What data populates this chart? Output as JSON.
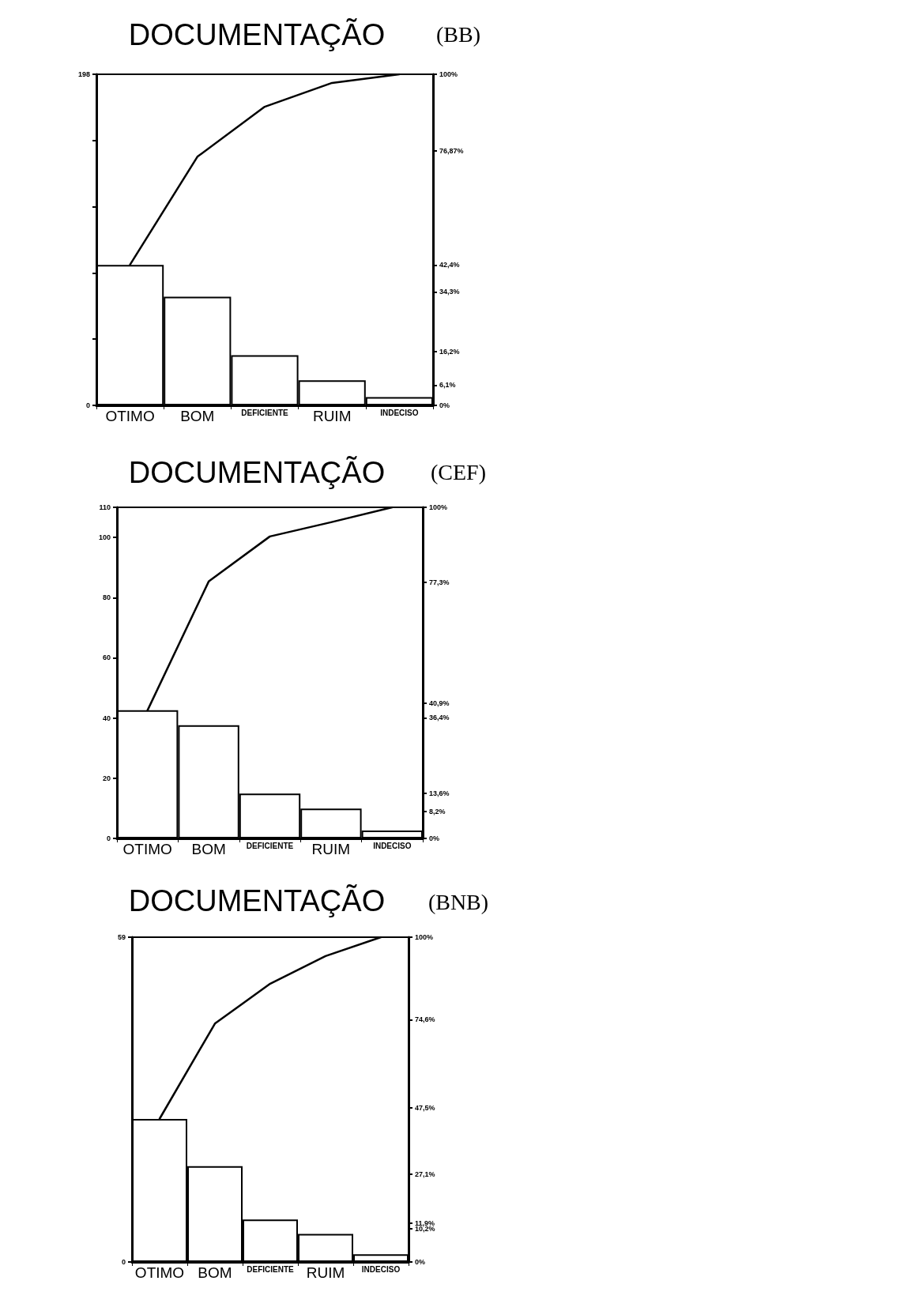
{
  "chart_data": [
    {
      "type": "bar",
      "title": "DOCUMENTAÇÃO",
      "subtitle": "(BB)",
      "categories": [
        "OTIMO",
        "BOM",
        "DEFICIENTE",
        "RUIM",
        "INDECISO"
      ],
      "series": [
        {
          "color": "#ffffff",
          "values": [
            84,
            65,
            30,
            15,
            5
          ]
        },
        {
          "type": "line",
          "axis": "y2",
          "color": "#000000",
          "values": [
            42.5,
            75.1,
            90.2,
            97.4,
            100
          ]
        }
      ],
      "ylim": [
        0,
        198
      ],
      "yticks": [
        0,
        {
          "value": 39.6,
          "label": null
        },
        {
          "value": 79.2,
          "label": null
        },
        {
          "value": 118.8,
          "label": null
        },
        {
          "value": 158.4,
          "label": null
        },
        198
      ],
      "y2lim": [
        0,
        100
      ],
      "y2ticks": [
        {
          "value": 0,
          "label": "0%"
        },
        {
          "value": 6.1,
          "label": "6,1%"
        },
        {
          "value": 16.2,
          "label": "16,2%"
        },
        {
          "value": 34.3,
          "label": "34,3%"
        },
        {
          "value": 42.4,
          "label": "42,4%"
        },
        {
          "value": 76.87,
          "label": "76,87%"
        },
        {
          "value": 100,
          "label": "100%"
        }
      ],
      "marker": "none",
      "line_style": "solid"
    },
    {
      "type": "bar",
      "title": "DOCUMENTAÇÃO",
      "subtitle": "(CEF)",
      "categories": [
        "OTIMO",
        "BOM",
        "DEFICIENTE",
        "RUIM",
        "INDECISO"
      ],
      "series": [
        {
          "color": "#ffffff",
          "values": [
            42.6,
            37.6,
            14.9,
            9.9,
            2.6
          ]
        },
        {
          "type": "line",
          "axis": "y2",
          "color": "#000000",
          "values": [
            38.7,
            77.6,
            91.2,
            95.5,
            100
          ]
        }
      ],
      "ylim": [
        0,
        110
      ],
      "yticks": [
        0,
        20,
        40,
        60,
        80,
        100,
        110
      ],
      "y2lim": [
        0,
        100
      ],
      "y2ticks": [
        {
          "value": 0,
          "label": "0%"
        },
        {
          "value": 8.2,
          "label": "8,2%"
        },
        {
          "value": 13.6,
          "label": "13,6%"
        },
        {
          "value": 36.4,
          "label": "36,4%"
        },
        {
          "value": 40.9,
          "label": "40,9%"
        },
        {
          "value": 77.3,
          "label": "77,3%"
        },
        {
          "value": 100,
          "label": "100%"
        }
      ],
      "marker": "none",
      "line_style": "solid"
    },
    {
      "type": "bar",
      "title": "DOCUMENTAÇÃO",
      "subtitle": "(BNB)",
      "categories": [
        "OTIMO",
        "BOM",
        "DEFICIENTE",
        "RUIM",
        "INDECISO"
      ],
      "series": [
        {
          "color": "#ffffff",
          "values": [
            26,
            17.4,
            7.7,
            5.1,
            1.4
          ]
        },
        {
          "type": "line",
          "axis": "y2",
          "color": "#000000",
          "values": [
            44.1,
            73.4,
            85.7,
            94.2,
            100
          ]
        }
      ],
      "ylim": [
        0,
        59
      ],
      "yticks": [
        0,
        59
      ],
      "y2lim": [
        0,
        100
      ],
      "y2ticks": [
        {
          "value": 0,
          "label": "0%"
        },
        {
          "value": 10.2,
          "label": "10,2%"
        },
        {
          "value": 11.9,
          "label": "11,9%"
        },
        {
          "value": 27.1,
          "label": "27,1%"
        },
        {
          "value": 47.5,
          "label": "47,5%"
        },
        {
          "value": 74.6,
          "label": "74,6%"
        },
        {
          "value": 100,
          "label": "100%"
        }
      ],
      "marker": "none",
      "line_style": "solid"
    }
  ]
}
